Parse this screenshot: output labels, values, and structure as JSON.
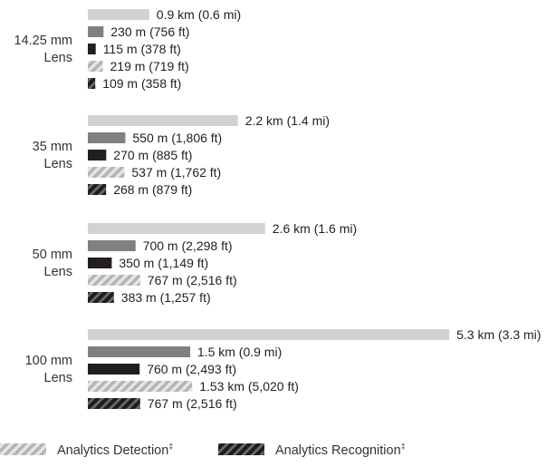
{
  "chart_data": {
    "type": "bar",
    "orientation": "horizontal",
    "groups": [
      {
        "label_lines": [
          "14.25 mm",
          "Lens"
        ],
        "bars": [
          {
            "series": "s1",
            "value_m": 900,
            "label": "0.9 km (0.6 mi)"
          },
          {
            "series": "s2",
            "value_m": 230,
            "label": "230 m (756 ft)"
          },
          {
            "series": "s3",
            "value_m": 115,
            "label": "115 m (378 ft)"
          },
          {
            "series": "detection",
            "value_m": 219,
            "label": "219 m (719 ft)"
          },
          {
            "series": "recognition",
            "value_m": 109,
            "label": "109 m (358 ft)"
          }
        ]
      },
      {
        "label_lines": [
          "35 mm",
          "Lens"
        ],
        "bars": [
          {
            "series": "s1",
            "value_m": 2200,
            "label": "2.2 km (1.4 mi)"
          },
          {
            "series": "s2",
            "value_m": 550,
            "label": "550 m (1,806 ft)"
          },
          {
            "series": "s3",
            "value_m": 270,
            "label": "270 m (885 ft)"
          },
          {
            "series": "detection",
            "value_m": 537,
            "label": "537 m (1,762 ft)"
          },
          {
            "series": "recognition",
            "value_m": 268,
            "label": "268 m (879 ft)"
          }
        ]
      },
      {
        "label_lines": [
          "50 mm",
          "Lens"
        ],
        "bars": [
          {
            "series": "s1",
            "value_m": 2600,
            "label": "2.6 km (1.6 mi)"
          },
          {
            "series": "s2",
            "value_m": 700,
            "label": "700 m (2,298 ft)"
          },
          {
            "series": "s3",
            "value_m": 350,
            "label": "350 m (1,149 ft)"
          },
          {
            "series": "detection",
            "value_m": 767,
            "label": "767 m (2,516 ft)"
          },
          {
            "series": "recognition",
            "value_m": 383,
            "label": "383 m (1,257 ft)"
          }
        ]
      },
      {
        "label_lines": [
          "100 mm",
          "Lens"
        ],
        "bars": [
          {
            "series": "s1",
            "value_m": 5300,
            "label": "5.3 km (3.3 mi)"
          },
          {
            "series": "s2",
            "value_m": 1500,
            "label": "1.5 km (0.9 mi)"
          },
          {
            "series": "s3",
            "value_m": 760,
            "label": "760 m (2,493 ft)"
          },
          {
            "series": "detection",
            "value_m": 1530,
            "label": "1.53 km (5,020 ft)"
          },
          {
            "series": "recognition",
            "value_m": 767,
            "label": "767 m (2,516 ft)"
          }
        ]
      }
    ],
    "series_styles": {
      "s1": {
        "color": "#d2d2d2",
        "pattern": "solid"
      },
      "s2": {
        "color": "#808080",
        "pattern": "solid"
      },
      "s3": {
        "color": "#231f20",
        "pattern": "solid"
      },
      "detection": {
        "color": "#c4c4c4",
        "pattern": "hatched-light"
      },
      "recognition": {
        "color": "#231f20",
        "pattern": "hatched-dark"
      }
    },
    "legend": [
      {
        "series": "detection",
        "label": "Analytics Detection",
        "mark": "‡"
      },
      {
        "series": "recognition",
        "label": "Analytics Recognition",
        "mark": "‡"
      }
    ],
    "legend_position": "bottom",
    "grid": false,
    "axes_visible": false
  }
}
